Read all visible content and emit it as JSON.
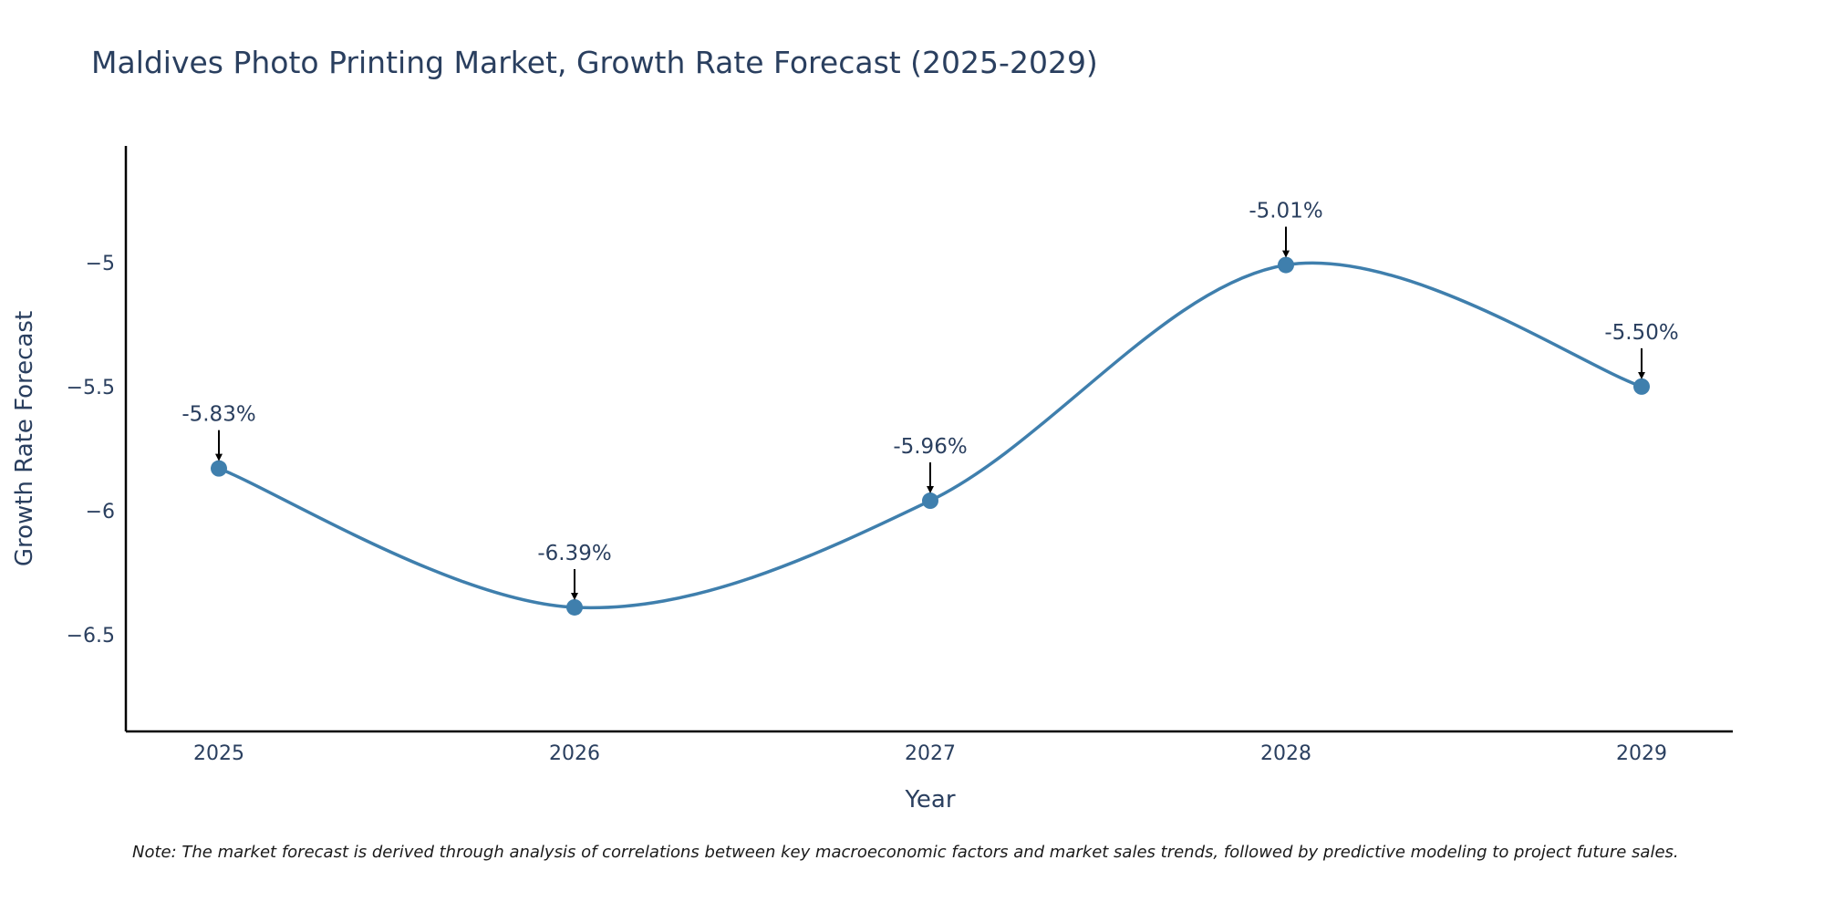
{
  "chart_data": {
    "type": "line",
    "title": "Maldives Photo Printing Market, Growth Rate Forecast (2025-2029)",
    "xlabel": "Year",
    "ylabel": "Growth Rate Forecast",
    "categories": [
      "2025",
      "2026",
      "2027",
      "2028",
      "2029"
    ],
    "series": [
      {
        "name": "Growth Rate Forecast",
        "values": [
          -5.83,
          -6.39,
          -5.96,
          -5.01,
          -5.5
        ],
        "color": "#3f7fad"
      }
    ],
    "data_labels": [
      "-5.83%",
      "-6.39%",
      "-5.96%",
      "-5.01%",
      "-5.50%"
    ],
    "y_ticks": [
      -5,
      -5.5,
      -6,
      -6.5
    ],
    "y_tick_labels": [
      "−5",
      "−5.5",
      "−6",
      "−6.5"
    ],
    "ylim": [
      -6.89,
      -4.53
    ],
    "grid": false,
    "line_shape": "spline",
    "note": "Note: The market forecast is derived through analysis of correlations between key macroeconomic factors and market sales trends, followed by predictive modeling to project future sales."
  }
}
